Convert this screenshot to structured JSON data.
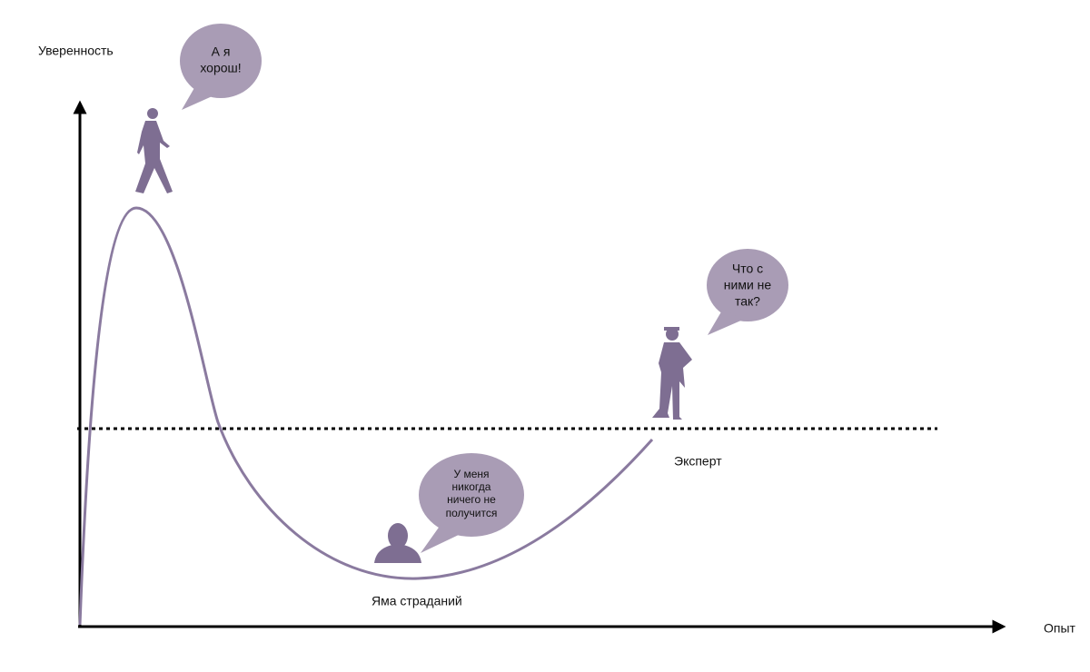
{
  "axes": {
    "y_label": "Уверенность",
    "x_label": "Опыт"
  },
  "bubbles": [
    {
      "lines": [
        "А я",
        "хорош!"
      ]
    },
    {
      "lines": [
        "Что с",
        "ними не",
        "так?"
      ]
    },
    {
      "lines": [
        "У меня",
        "никогда",
        "ничего не",
        "получится"
      ]
    }
  ],
  "labels": {
    "expert": "Эксперт",
    "pit": "Яма страданий"
  }
}
